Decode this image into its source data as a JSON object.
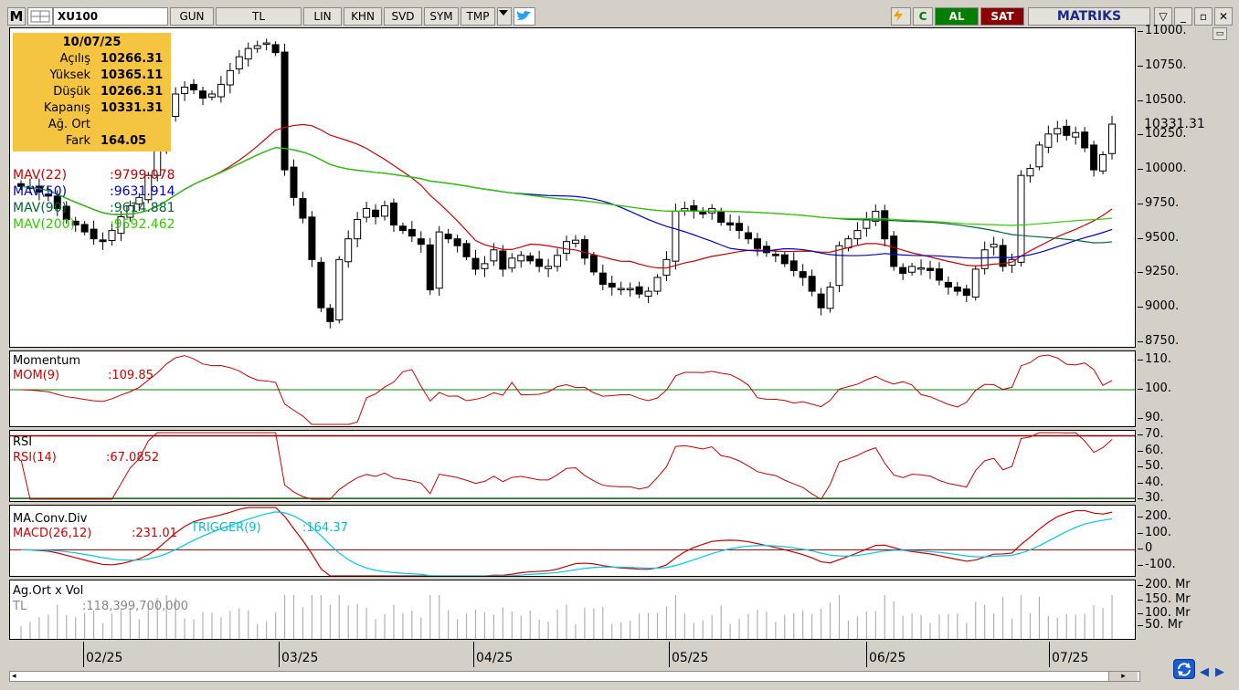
{
  "toolbar": {
    "logo": "M",
    "symbol": "XU100",
    "buttons": [
      "GUN",
      "TL",
      "LIN",
      "KHN",
      "SVD",
      "SYM",
      "TMP"
    ],
    "buy": "AL",
    "sell": "SAT",
    "brand": "MATRIKS",
    "colors": {
      "buy": "#007a00",
      "sell": "#8b0000"
    }
  },
  "ohlc": {
    "date": "10/07/25",
    "rows": [
      {
        "key": "Açılış",
        "value": "10266.31"
      },
      {
        "key": "Yüksek",
        "value": "10365.11"
      },
      {
        "key": "Düşük",
        "value": "10266.31"
      },
      {
        "key": "Kapanış",
        "value": "10331.31"
      },
      {
        "key": "Ağ. Ort",
        "value": ""
      },
      {
        "key": "Fark",
        "value": "164.05"
      }
    ]
  },
  "price_panel": {
    "legend": [
      {
        "name": "MAV(22)",
        "value": ":9799.078",
        "color": "#cc0000"
      },
      {
        "name": "MAV(50)",
        "value": ":9631.914",
        "color": "#0000cc"
      },
      {
        "name": "MAV(90)",
        "value": ":9614.881",
        "color": "#006633"
      },
      {
        "name": "MAV(200)",
        "value": ":9592.462",
        "color": "#33cc00"
      }
    ],
    "last_price": "10331.31",
    "y_ticks": [
      "11000.",
      "10750.",
      "10500.",
      "10250.",
      "10000.",
      "9750.",
      "9500.",
      "9250.",
      "9000.",
      "8750."
    ]
  },
  "momentum_panel": {
    "title": "Momentum",
    "series": "MOM(9)",
    "value": ":109.85",
    "y_ticks": [
      "110.",
      "100.",
      "90."
    ]
  },
  "rsi_panel": {
    "title": "RSI",
    "series": "RSI(14)",
    "value": ":67.0852",
    "y_ticks": [
      "70.",
      "60.",
      "50.",
      "40.",
      "30."
    ]
  },
  "macd_panel": {
    "title": "MA.Conv.Div",
    "series": "MACD(26,12)",
    "value": ":231.01",
    "trigger": "TRIGGER(9)",
    "trigger_value": ":164.37",
    "y_ticks": [
      "200.",
      "100.",
      "0",
      "-100."
    ]
  },
  "volume_panel": {
    "title": "Ag.Ort x Vol",
    "series": "TL",
    "value": ":118,399,700,000",
    "y_ticks": [
      "200. Mr",
      "150. Mr",
      "100. Mr",
      "50. Mr"
    ]
  },
  "x_axis": {
    "labels": [
      "02/25",
      "03/25",
      "04/25",
      "05/25",
      "06/25",
      "07/25"
    ]
  },
  "chart_data": {
    "type": "candlestick",
    "title": "XU100",
    "x_labels": [
      "02/25",
      "03/25",
      "04/25",
      "05/25",
      "06/25",
      "07/25"
    ],
    "price_ylim": [
      8750,
      11000
    ],
    "close": [
      9880,
      9870,
      9840,
      9810,
      9720,
      9640,
      9600,
      9550,
      9500,
      9480,
      9560,
      9660,
      9740,
      9800,
      9960,
      10160,
      10400,
      10550,
      10600,
      10580,
      10520,
      10550,
      10620,
      10720,
      10820,
      10880,
      10900,
      10920,
      10850,
      10000,
      9800,
      9650,
      9350,
      9000,
      8900,
      9350,
      9500,
      9640,
      9720,
      9660,
      9740,
      9600,
      9560,
      9520,
      9460,
      9130,
      9550,
      9500,
      9450,
      9370,
      9280,
      9320,
      9420,
      9280,
      9360,
      9380,
      9340,
      9300,
      9300,
      9380,
      9480,
      9490,
      9360,
      9260,
      9170,
      9150,
      9140,
      9140,
      9100,
      9120,
      9220,
      9350,
      9700,
      9720,
      9700,
      9680,
      9720,
      9620,
      9600,
      9560,
      9500,
      9430,
      9400,
      9380,
      9320,
      9270,
      9220,
      9120,
      9000,
      9150,
      9450,
      9500,
      9560,
      9640,
      9700,
      9500,
      9300,
      9250,
      9300,
      9290,
      9270,
      9200,
      9150,
      9120,
      9090,
      9280,
      9420,
      9460,
      9300,
      9350,
      9960,
      10010,
      10180,
      10260,
      10300,
      10250,
      10270,
      10160,
      10000,
      10110,
      10331.31
    ],
    "mav22_end": 9799.078,
    "mav50_end": 9631.914,
    "mav90_end": 9614.881,
    "mav200_end": 9592.462,
    "momentum_ylim": [
      88,
      112
    ],
    "mom9_end": 109.85,
    "rsi_ylim": [
      30,
      72
    ],
    "rsi_reference": 70,
    "rsi14_end": 67.0852,
    "macd_ylim": [
      -160,
      260
    ],
    "macd_end": 231.01,
    "trigger_end": 164.37
  }
}
